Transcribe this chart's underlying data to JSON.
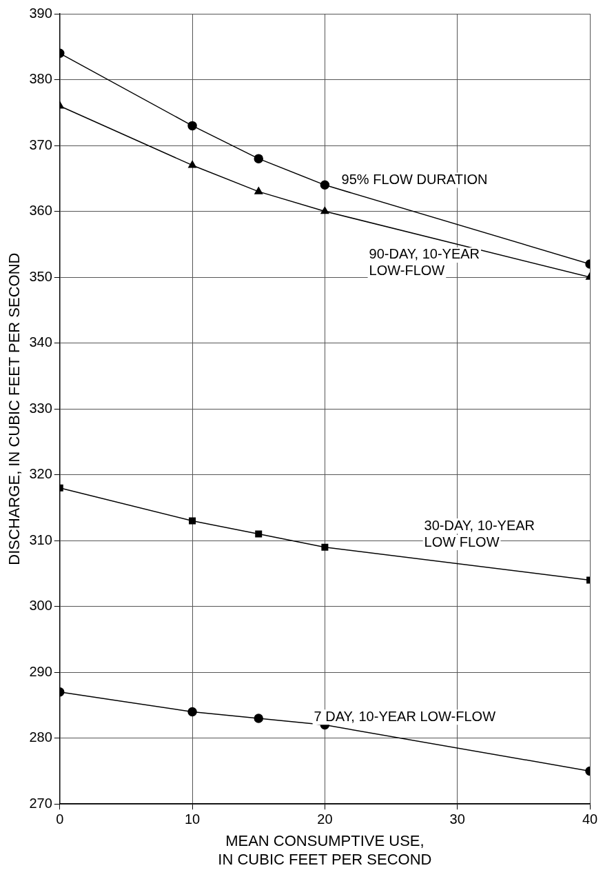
{
  "chart_data": {
    "type": "line",
    "xlabel": "MEAN CONSUMPTIVE USE,\nIN CUBIC FEET PER SECOND",
    "ylabel": "DISCHARGE, IN CUBIC FEET PER SECOND",
    "x": [
      0,
      10,
      15,
      20,
      40
    ],
    "series": [
      {
        "name": "95% FLOW DURATION",
        "color": "#000000",
        "marker": "circle",
        "values": [
          384,
          373,
          368,
          364,
          352
        ]
      },
      {
        "name": "90-DAY, 10-YEAR\nLOW-FLOW",
        "color": "#000000",
        "marker": "triangle",
        "values": [
          376,
          367,
          363,
          360,
          350
        ]
      },
      {
        "name": "30-DAY, 10-YEAR\nLOW FLOW",
        "color": "#000000",
        "marker": "square",
        "values": [
          318,
          313,
          311,
          309,
          304
        ]
      },
      {
        "name": "7 DAY, 10-YEAR LOW-FLOW",
        "color": "#000000",
        "marker": "circle",
        "values": [
          287,
          284,
          283,
          282,
          275
        ]
      }
    ],
    "xlim": [
      0,
      40
    ],
    "xticks": [
      0,
      10,
      20,
      30,
      40
    ],
    "ylim": [
      270,
      390
    ],
    "yticks": [
      270,
      280,
      290,
      300,
      310,
      320,
      330,
      340,
      350,
      360,
      370,
      380,
      390
    ],
    "grid": true,
    "legend": false,
    "line_style": "solid"
  }
}
